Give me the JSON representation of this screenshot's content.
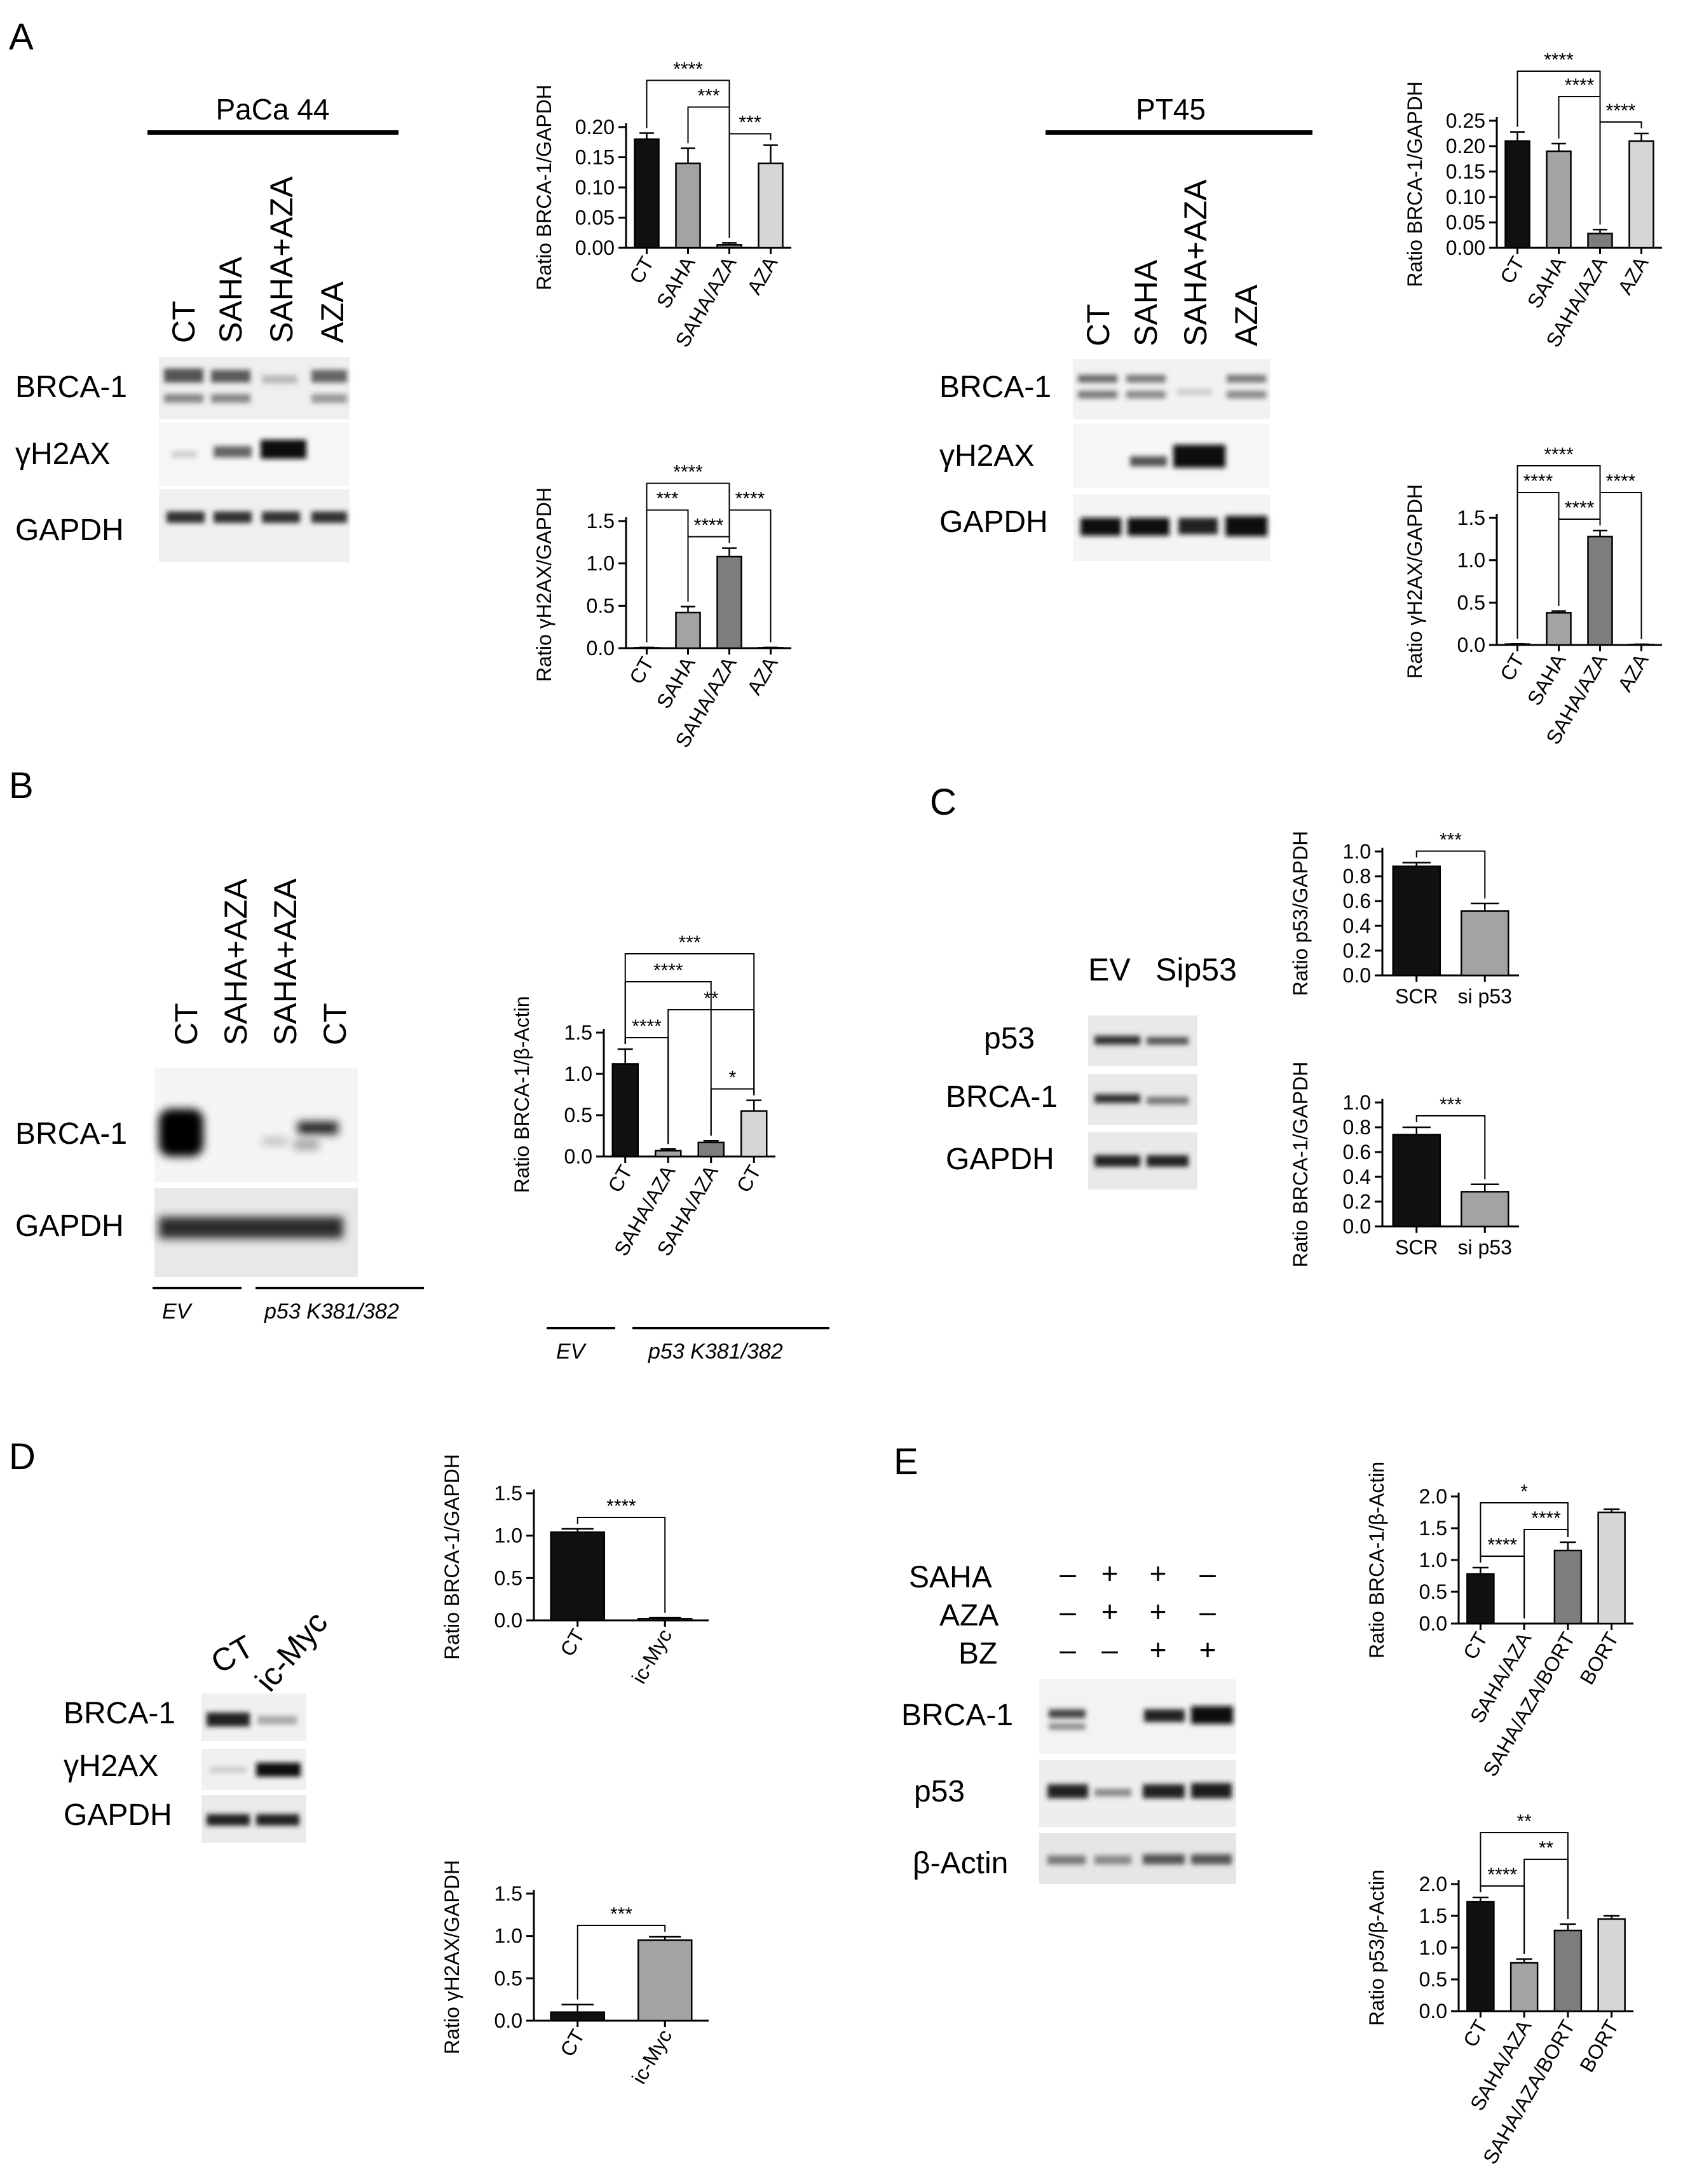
{
  "panels": [
    {
      "id": "A",
      "letter": "A"
    },
    {
      "id": "B",
      "letter": "B"
    },
    {
      "id": "C",
      "letter": "C"
    },
    {
      "id": "D",
      "letter": "D"
    },
    {
      "id": "E",
      "letter": "E"
    }
  ],
  "blots": [
    {
      "id": "A1",
      "group_label": "PaCa 44",
      "lanes": [
        "CT",
        "SAHA",
        "SAHA+AZA",
        "AZA"
      ],
      "rows": [
        "BRCA-1",
        "γH2AX",
        "GAPDH"
      ]
    },
    {
      "id": "A2",
      "group_label": "PT45",
      "lanes": [
        "CT",
        "SAHA",
        "SAHA+AZA",
        "AZA"
      ],
      "rows": [
        "BRCA-1",
        "γH2AX",
        "GAPDH"
      ]
    },
    {
      "id": "B",
      "lanes": [
        "CT",
        "SAHA+AZA",
        "SAHA+AZA",
        "CT"
      ],
      "rows": [
        "BRCA-1",
        "GAPDH"
      ],
      "groups": [
        "EV",
        "p53 K381/382"
      ]
    },
    {
      "id": "C",
      "lanes": [
        "EV",
        "Sip53"
      ],
      "rows": [
        "p53",
        "BRCA-1",
        "GAPDH"
      ]
    },
    {
      "id": "D",
      "lanes": [
        "CT",
        "ic-Myc"
      ],
      "rows": [
        "BRCA-1",
        "γH2AX",
        "GAPDH"
      ]
    },
    {
      "id": "E",
      "treatments": [
        {
          "name": "SAHA",
          "signs": [
            "–",
            "+",
            "+",
            "–"
          ]
        },
        {
          "name": "AZA",
          "signs": [
            "–",
            "+",
            "+",
            "–"
          ]
        },
        {
          "name": "BZ",
          "signs": [
            "–",
            "–",
            "+",
            "+"
          ]
        }
      ],
      "rows": [
        "BRCA-1",
        "p53",
        "β-Actin"
      ]
    }
  ],
  "chart_data": [
    {
      "id": "A1-brca",
      "type": "bar",
      "ylabel": "Ratio BRCA-1/GAPDH",
      "categories": [
        "CT",
        "SAHA",
        "SAHA/AZA",
        "AZA"
      ],
      "values": [
        0.18,
        0.14,
        0.005,
        0.14
      ],
      "errors": [
        0.01,
        0.025,
        0.003,
        0.03
      ],
      "colors": [
        "#111111",
        "#a3a3a3",
        "#7d7d7d",
        "#d6d6d6"
      ],
      "ylim": [
        0,
        0.2
      ],
      "yticks": [
        "0.00",
        "0.05",
        "0.10",
        "0.15",
        "0.20"
      ],
      "sig": [
        {
          "a": 0,
          "b": 2,
          "label": "****"
        },
        {
          "a": 2,
          "b": 3,
          "label": "***"
        },
        {
          "a": 1,
          "b": 2,
          "label": "***"
        }
      ]
    },
    {
      "id": "A1-h2ax",
      "type": "bar",
      "ylabel": "Ratio γH2AX/GAPDH",
      "categories": [
        "CT",
        "SAHA",
        "SAHA/AZA",
        "AZA"
      ],
      "values": [
        0.005,
        0.42,
        1.08,
        0.005
      ],
      "errors": [
        0.003,
        0.07,
        0.1,
        0.003
      ],
      "colors": [
        "#111111",
        "#a3a3a3",
        "#7d7d7d",
        "#d6d6d6"
      ],
      "ylim": [
        0,
        1.5
      ],
      "yticks": [
        "0.0",
        "0.5",
        "1.0",
        "1.5"
      ],
      "sig": [
        {
          "a": 0,
          "b": 2,
          "label": "****"
        },
        {
          "a": 1,
          "b": 2,
          "label": "****"
        },
        {
          "a": 0,
          "b": 1,
          "label": "***"
        },
        {
          "a": 2,
          "b": 3,
          "label": "****"
        }
      ]
    },
    {
      "id": "A2-brca",
      "type": "bar",
      "ylabel": "Ratio BRCA-1/GAPDH",
      "categories": [
        "CT",
        "SAHA",
        "SAHA/AZA",
        "AZA"
      ],
      "values": [
        0.21,
        0.19,
        0.028,
        0.21
      ],
      "errors": [
        0.018,
        0.015,
        0.008,
        0.015
      ],
      "colors": [
        "#111111",
        "#a3a3a3",
        "#7d7d7d",
        "#d6d6d6"
      ],
      "ylim": [
        0,
        0.25
      ],
      "yticks": [
        "0.00",
        "0.05",
        "0.10",
        "0.15",
        "0.20",
        "0.25"
      ],
      "sig": [
        {
          "a": 0,
          "b": 2,
          "label": "****"
        },
        {
          "a": 2,
          "b": 3,
          "label": "****"
        },
        {
          "a": 1,
          "b": 2,
          "label": "****"
        }
      ]
    },
    {
      "id": "A2-h2ax",
      "type": "bar",
      "ylabel": "Ratio γH2AX/GAPDH",
      "categories": [
        "CT",
        "SAHA",
        "SAHA/AZA",
        "AZA"
      ],
      "values": [
        0.01,
        0.38,
        1.28,
        0.005
      ],
      "errors": [
        0.003,
        0.02,
        0.07,
        0.003
      ],
      "colors": [
        "#111111",
        "#a3a3a3",
        "#7d7d7d",
        "#d6d6d6"
      ],
      "ylim": [
        0,
        1.5
      ],
      "yticks": [
        "0.0",
        "0.5",
        "1.0",
        "1.5"
      ],
      "sig": [
        {
          "a": 0,
          "b": 2,
          "label": "****"
        },
        {
          "a": 1,
          "b": 2,
          "label": "****"
        },
        {
          "a": 0,
          "b": 1,
          "label": "****"
        },
        {
          "a": 2,
          "b": 3,
          "label": "****"
        }
      ]
    },
    {
      "id": "B-brca",
      "type": "bar",
      "ylabel": "Ratio BRCA-1/β-Actin",
      "categories": [
        "CT",
        "SAHA/AZA",
        "SAHA/AZA",
        "CT"
      ],
      "values": [
        1.12,
        0.07,
        0.17,
        0.55
      ],
      "errors": [
        0.18,
        0.02,
        0.02,
        0.13
      ],
      "colors": [
        "#111111",
        "#a3a3a3",
        "#7d7d7d",
        "#d6d6d6"
      ],
      "ylim": [
        0,
        1.5
      ],
      "yticks": [
        "0.0",
        "0.5",
        "1.0",
        "1.5"
      ],
      "groups": [
        "EV",
        "p53 K381/382"
      ],
      "sig": [
        {
          "a": 0,
          "b": 3,
          "label": "***"
        },
        {
          "a": 1,
          "b": 3,
          "label": "**"
        },
        {
          "a": 0,
          "b": 2,
          "label": "****"
        },
        {
          "a": 0,
          "b": 1,
          "label": "****"
        },
        {
          "a": 2,
          "b": 3,
          "label": "*"
        }
      ]
    },
    {
      "id": "C-p53",
      "type": "bar",
      "ylabel": "Ratio p53/GAPDH",
      "categories": [
        "SCR",
        "si p53"
      ],
      "values": [
        0.88,
        0.52
      ],
      "errors": [
        0.03,
        0.06
      ],
      "colors": [
        "#111111",
        "#a3a3a3"
      ],
      "ylim": [
        0,
        1.0
      ],
      "yticks": [
        "0.0",
        "0.2",
        "0.4",
        "0.6",
        "0.8",
        "1.0"
      ],
      "sig": [
        {
          "a": 0,
          "b": 1,
          "label": "***"
        }
      ]
    },
    {
      "id": "C-brca",
      "type": "bar",
      "ylabel": "Ratio BRCA-1/GAPDH",
      "categories": [
        "SCR",
        "si p53"
      ],
      "values": [
        0.74,
        0.28
      ],
      "errors": [
        0.06,
        0.06
      ],
      "colors": [
        "#111111",
        "#a3a3a3"
      ],
      "ylim": [
        0,
        1.0
      ],
      "yticks": [
        "0.0",
        "0.2",
        "0.4",
        "0.6",
        "0.8",
        "1.0"
      ],
      "sig": [
        {
          "a": 0,
          "b": 1,
          "label": "***"
        }
      ]
    },
    {
      "id": "D-brca",
      "type": "bar",
      "ylabel": "Ratio BRCA-1/GAPDH",
      "categories": [
        "CT",
        "ic-Myc"
      ],
      "values": [
        1.04,
        0.02
      ],
      "errors": [
        0.04,
        0.01
      ],
      "colors": [
        "#111111",
        "#a3a3a3"
      ],
      "ylim": [
        0,
        1.5
      ],
      "yticks": [
        "0.0",
        "0.5",
        "1.0",
        "1.5"
      ],
      "sig": [
        {
          "a": 0,
          "b": 1,
          "label": "****"
        }
      ]
    },
    {
      "id": "D-h2ax",
      "type": "bar",
      "ylabel": "Ratio γH2AX/GAPDH",
      "categories": [
        "CT",
        "ic-Myc"
      ],
      "values": [
        0.1,
        0.95
      ],
      "errors": [
        0.09,
        0.04
      ],
      "colors": [
        "#111111",
        "#a3a3a3"
      ],
      "ylim": [
        0,
        1.5
      ],
      "yticks": [
        "0.0",
        "0.5",
        "1.0",
        "1.5"
      ],
      "sig": [
        {
          "a": 0,
          "b": 1,
          "label": "***"
        }
      ]
    },
    {
      "id": "E-brca",
      "type": "bar",
      "ylabel": "Ratio BRCA-1/β-Actin",
      "categories": [
        "CT",
        "SAHA/AZA",
        "SAHA/AZA/BORT",
        "BORT"
      ],
      "values": [
        0.78,
        0.0,
        1.15,
        1.75
      ],
      "errors": [
        0.1,
        0.0,
        0.13,
        0.05
      ],
      "colors": [
        "#111111",
        "#a3a3a3",
        "#7d7d7d",
        "#d6d6d6"
      ],
      "ylim": [
        0,
        2.0
      ],
      "yticks": [
        "0.0",
        "0.5",
        "1.0",
        "1.5",
        "2.0"
      ],
      "sig": [
        {
          "a": 0,
          "b": 2,
          "label": "*"
        },
        {
          "a": 0,
          "b": 1,
          "label": "****"
        },
        {
          "a": 1,
          "b": 2,
          "label": "****"
        }
      ]
    },
    {
      "id": "E-p53",
      "type": "bar",
      "ylabel": "Ratio p53/β-Actin",
      "categories": [
        "CT",
        "SAHA/AZA",
        "SAHA/AZA/BORT",
        "BORT"
      ],
      "values": [
        1.72,
        0.76,
        1.27,
        1.45
      ],
      "errors": [
        0.07,
        0.06,
        0.1,
        0.05
      ],
      "colors": [
        "#111111",
        "#a3a3a3",
        "#7d7d7d",
        "#d6d6d6"
      ],
      "ylim": [
        0,
        2.0
      ],
      "yticks": [
        "0.0",
        "0.5",
        "1.0",
        "1.5",
        "2.0"
      ],
      "sig": [
        {
          "a": 0,
          "b": 2,
          "label": "**"
        },
        {
          "a": 0,
          "b": 1,
          "label": "****"
        },
        {
          "a": 1,
          "b": 2,
          "label": "**"
        }
      ]
    }
  ]
}
